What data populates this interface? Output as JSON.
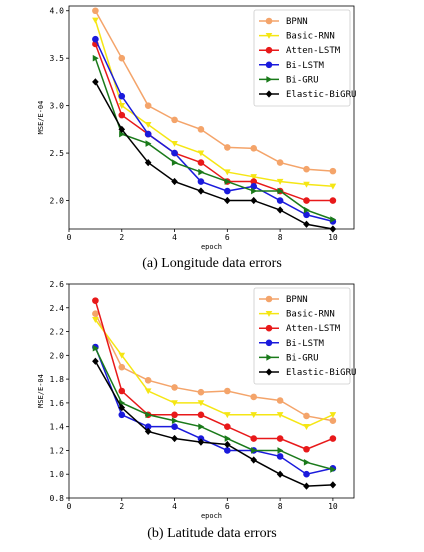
{
  "chart_data": [
    {
      "type": "line",
      "caption": "(a) Longitude data errors",
      "xlabel": "epoch",
      "ylabel": "MSE/E-04",
      "x": [
        1,
        2,
        3,
        4,
        5,
        6,
        7,
        8,
        9,
        10
      ],
      "xlim": [
        0,
        10.8
      ],
      "ylim": [
        1.7,
        4.05
      ],
      "xticks": [
        "0",
        "2",
        "4",
        "6",
        "8",
        "10"
      ],
      "yticks": [
        "2.0",
        "2.5",
        "3.0",
        "3.5",
        "4.0"
      ],
      "legend_position": "top-right",
      "grid": false,
      "series": [
        {
          "name": "BPNN",
          "color": "#f4a46a",
          "marker": "circle",
          "values": [
            4.0,
            3.5,
            3.0,
            2.85,
            2.75,
            2.56,
            2.55,
            2.4,
            2.33,
            2.31
          ]
        },
        {
          "name": "Basic-RNN",
          "color": "#f5e614",
          "marker": "triangle-down",
          "values": [
            3.9,
            3.0,
            2.8,
            2.6,
            2.5,
            2.3,
            2.25,
            2.2,
            2.17,
            2.15
          ]
        },
        {
          "name": "Atten-LSTM",
          "color": "#e8191a",
          "marker": "circle",
          "values": [
            3.65,
            2.9,
            2.7,
            2.5,
            2.4,
            2.2,
            2.2,
            2.1,
            2.0,
            2.0
          ]
        },
        {
          "name": "Bi-LSTM",
          "color": "#1a1adc",
          "marker": "circle",
          "values": [
            3.7,
            3.1,
            2.7,
            2.5,
            2.2,
            2.1,
            2.15,
            2.0,
            1.85,
            1.78
          ]
        },
        {
          "name": "Bi-GRU",
          "color": "#1a7a1a",
          "marker": "triangle-right",
          "values": [
            3.5,
            2.7,
            2.6,
            2.4,
            2.3,
            2.2,
            2.1,
            2.1,
            1.9,
            1.8
          ]
        },
        {
          "name": "Elastic-BiGRU",
          "color": "#000000",
          "marker": "diamond",
          "values": [
            3.25,
            2.75,
            2.4,
            2.2,
            2.1,
            2.0,
            2.0,
            1.9,
            1.75,
            1.7
          ]
        }
      ]
    },
    {
      "type": "line",
      "caption": "(b) Latitude data errors",
      "xlabel": "epoch",
      "ylabel": "MSE/E-04",
      "x": [
        1,
        2,
        3,
        4,
        5,
        6,
        7,
        8,
        9,
        10
      ],
      "xlim": [
        0,
        10.8
      ],
      "ylim": [
        0.8,
        2.6
      ],
      "xticks": [
        "0",
        "2",
        "4",
        "6",
        "8",
        "10"
      ],
      "yticks": [
        "0.8",
        "1.0",
        "1.2",
        "1.4",
        "1.6",
        "1.8",
        "2.0",
        "2.2",
        "2.4",
        "2.6"
      ],
      "legend_position": "top-right",
      "grid": false,
      "series": [
        {
          "name": "BPNN",
          "color": "#f4a46a",
          "marker": "circle",
          "values": [
            2.35,
            1.9,
            1.79,
            1.73,
            1.69,
            1.7,
            1.65,
            1.62,
            1.49,
            1.45
          ]
        },
        {
          "name": "Basic-RNN",
          "color": "#f5e614",
          "marker": "triangle-down",
          "values": [
            2.3,
            2.0,
            1.7,
            1.6,
            1.6,
            1.5,
            1.5,
            1.5,
            1.4,
            1.5
          ]
        },
        {
          "name": "Atten-LSTM",
          "color": "#e8191a",
          "marker": "circle",
          "values": [
            2.46,
            1.7,
            1.5,
            1.5,
            1.5,
            1.4,
            1.3,
            1.3,
            1.21,
            1.3
          ]
        },
        {
          "name": "Bi-LSTM",
          "color": "#1a1adc",
          "marker": "circle",
          "values": [
            2.07,
            1.5,
            1.4,
            1.4,
            1.3,
            1.2,
            1.2,
            1.15,
            1.0,
            1.05
          ]
        },
        {
          "name": "Bi-GRU",
          "color": "#1a7a1a",
          "marker": "triangle-right",
          "values": [
            2.06,
            1.6,
            1.5,
            1.45,
            1.4,
            1.3,
            1.2,
            1.2,
            1.1,
            1.04
          ]
        },
        {
          "name": "Elastic-BiGRU",
          "color": "#000000",
          "marker": "diamond",
          "values": [
            1.95,
            1.56,
            1.36,
            1.3,
            1.27,
            1.25,
            1.12,
            1.0,
            0.9,
            0.91
          ]
        }
      ]
    }
  ]
}
